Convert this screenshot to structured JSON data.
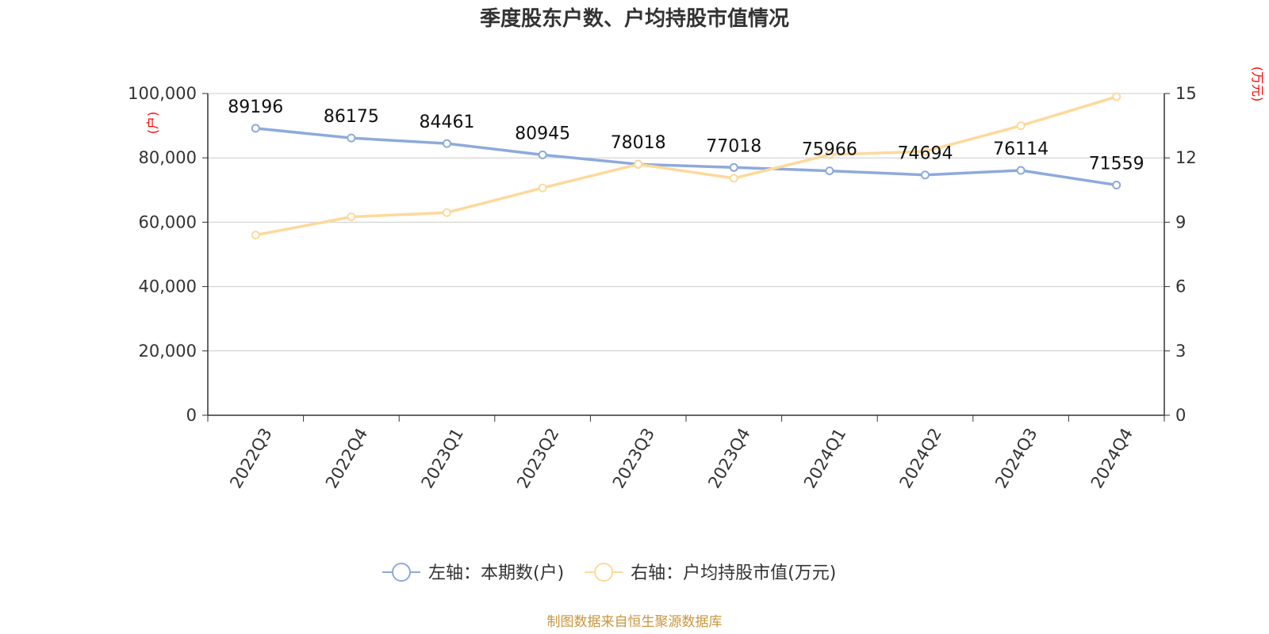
{
  "chart_data": {
    "type": "line",
    "title": "季度股东户数、户均持股市值情况",
    "categories": [
      "2022Q3",
      "2022Q4",
      "2023Q1",
      "2023Q2",
      "2023Q3",
      "2023Q4",
      "2024Q1",
      "2024Q2",
      "2024Q3",
      "2024Q4"
    ],
    "left_axis": {
      "unit": "(户)",
      "ylim": [
        0,
        100000
      ],
      "ticks": [
        "0",
        "20,000",
        "40,000",
        "60,000",
        "80,000",
        "100,000"
      ],
      "tick_values": [
        0,
        20000,
        40000,
        60000,
        80000,
        100000
      ]
    },
    "right_axis": {
      "unit": "(万元)",
      "ylim": [
        0,
        15
      ],
      "ticks": [
        "0",
        "3",
        "6",
        "9",
        "12",
        "15"
      ],
      "tick_values": [
        0,
        3,
        6,
        9,
        12,
        15
      ]
    },
    "grid": true,
    "legend_position": "bottom",
    "series": [
      {
        "name": "左轴：本期数(户)",
        "axis": "left",
        "color": "#8eaadb",
        "values": [
          89196,
          86175,
          84461,
          80945,
          78018,
          77018,
          75966,
          74694,
          76114,
          71559
        ],
        "labels": [
          "89196",
          "86175",
          "84461",
          "80945",
          "78018",
          "77018",
          "75966",
          "74694",
          "76114",
          "71559"
        ]
      },
      {
        "name": "右轴：户均持股市值(万元)",
        "axis": "right",
        "color": "#fdd99b",
        "values": [
          8.4,
          9.25,
          9.45,
          10.6,
          11.7,
          11.05,
          12.15,
          12.3,
          13.5,
          14.85
        ]
      }
    ]
  },
  "source": "制图数据来自恒生聚源数据库"
}
